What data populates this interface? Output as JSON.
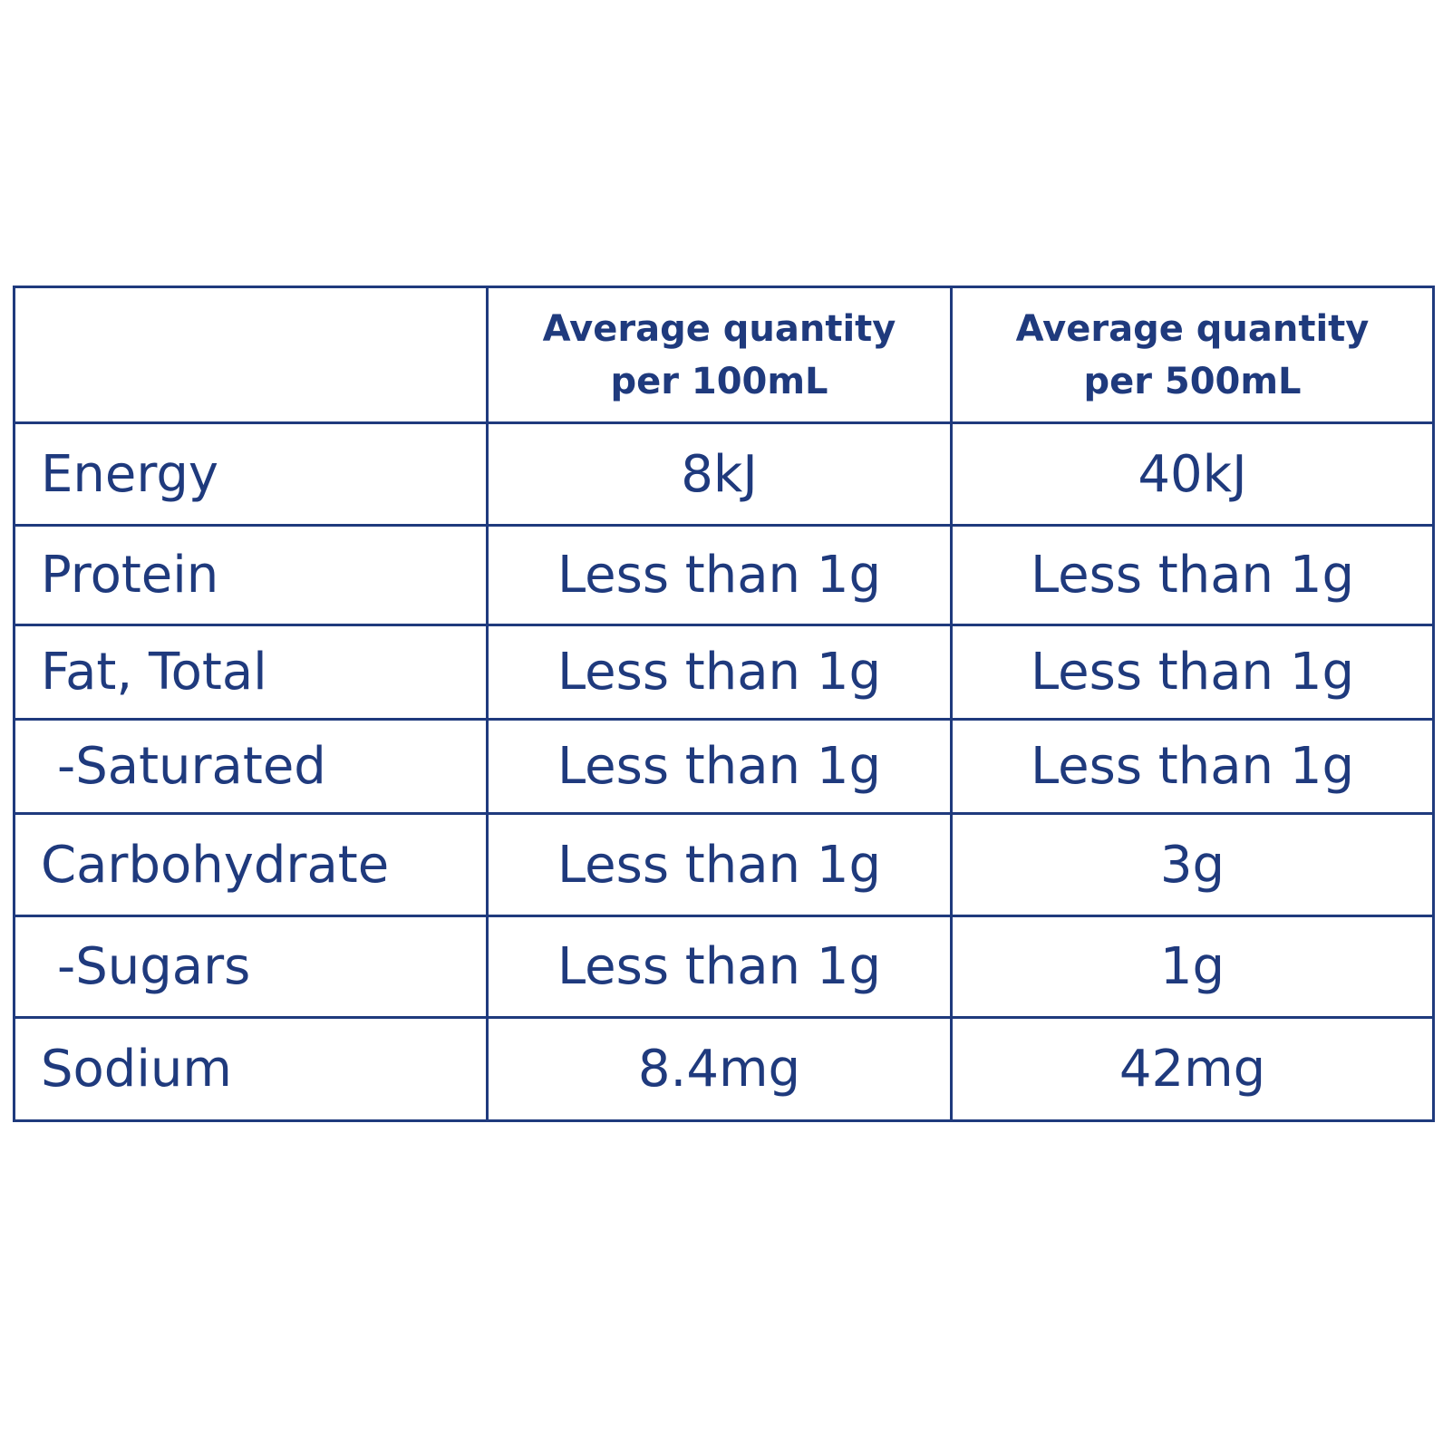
{
  "table": {
    "headers": [
      "",
      [
        "Average quantity",
        "per 100mL"
      ],
      [
        "Average quantity",
        "per 500mL"
      ]
    ],
    "rows": [
      {
        "label": "Energy",
        "per_100ml": "8kJ",
        "per_500ml": "40kJ"
      },
      {
        "label": "Protein",
        "per_100ml": "Less than 1g",
        "per_500ml": "Less than 1g"
      },
      {
        "label": "Fat, Total",
        "per_100ml": "Less than 1g",
        "per_500ml": "Less than 1g"
      },
      {
        "label": "-Saturated",
        "per_100ml": "Less than 1g",
        "per_500ml": "Less than 1g"
      },
      {
        "label": "Carbohydrate",
        "per_100ml": "Less than 1g",
        "per_500ml": "3g"
      },
      {
        "label": "-Sugars",
        "per_100ml": "Less than 1g",
        "per_500ml": "1g"
      },
      {
        "label": "Sodium",
        "per_100ml": "8.4mg",
        "per_500ml": "42mg"
      }
    ]
  },
  "colors": {
    "text": "#1f3a7d",
    "border": "#1f3a7d",
    "background": "#ffffff"
  }
}
